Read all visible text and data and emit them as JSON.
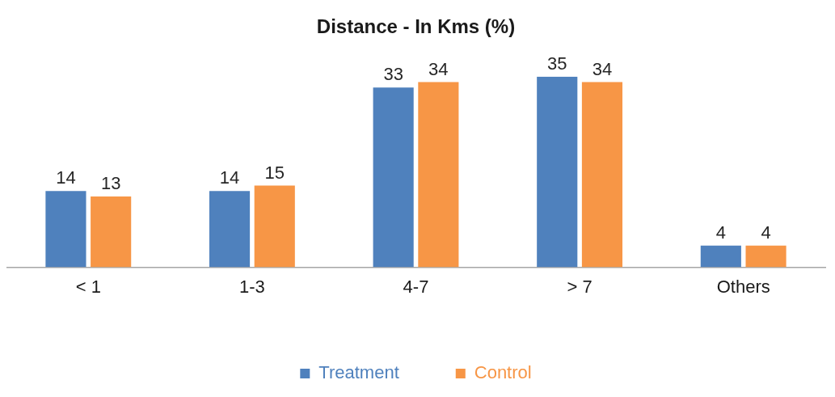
{
  "chart_data": {
    "type": "bar",
    "title": "Distance - In Kms (%)",
    "categories": [
      "< 1",
      "1-3",
      "4-7",
      "> 7",
      "Others"
    ],
    "series": [
      {
        "name": "Treatment",
        "color": "#4f81bd",
        "values": [
          14,
          14,
          33,
          35,
          4
        ]
      },
      {
        "name": "Control",
        "color": "#f79646",
        "values": [
          13,
          15,
          34,
          34,
          4
        ]
      }
    ],
    "data_labels": true,
    "legend": "bottom",
    "grid": false
  }
}
